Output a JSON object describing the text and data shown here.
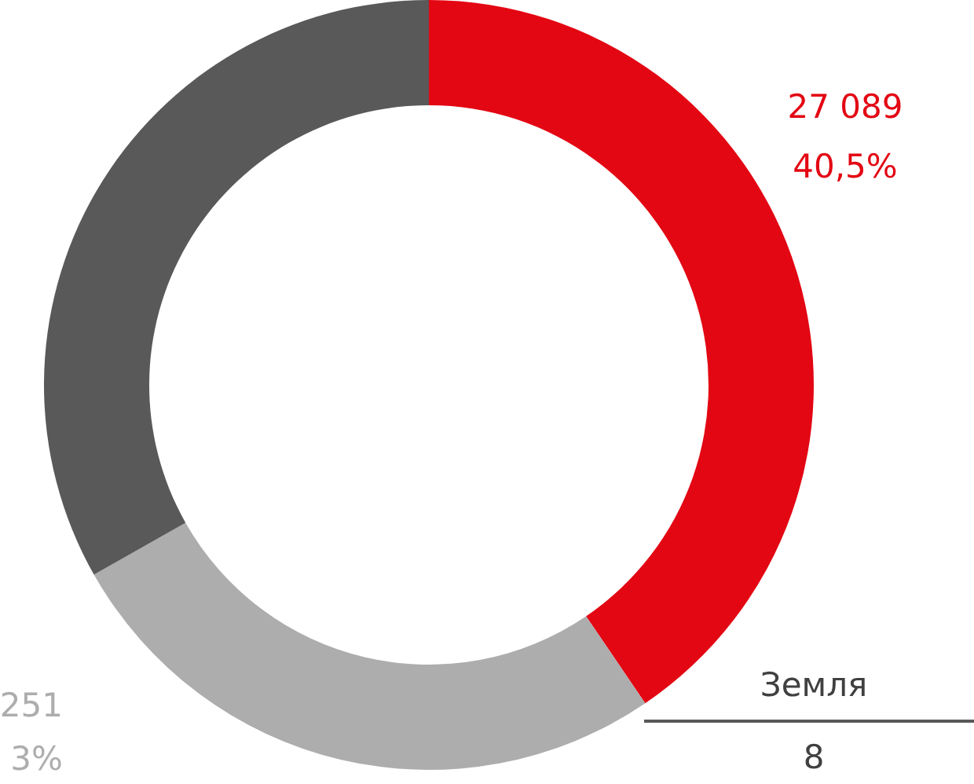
{
  "chart_data": {
    "type": "donut",
    "categories": [
      null,
      null,
      null
    ],
    "values": [
      40.5,
      26.3,
      33.2
    ],
    "colors": [
      "#e30613",
      "#adadad",
      "#595959"
    ],
    "value_labels": [
      "27 089\n40,5%",
      null,
      null
    ],
    "annotations": [
      "Земля",
      "8",
      "251",
      "3%"
    ]
  }
}
